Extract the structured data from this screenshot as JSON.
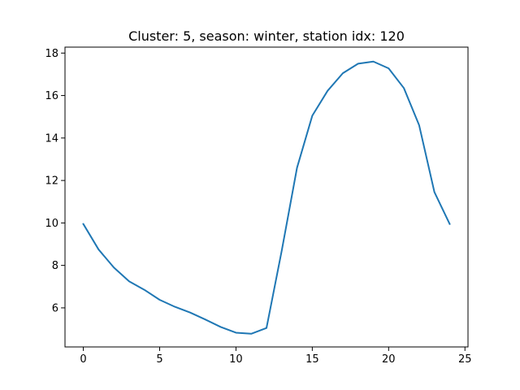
{
  "chart_data": {
    "type": "line",
    "title": "Cluster: 5, season: winter, station idx: 120",
    "xlabel": "",
    "ylabel": "",
    "xlim": [
      -1.2,
      25.2
    ],
    "ylim": [
      4.16,
      18.28
    ],
    "xticks": [
      0,
      5,
      10,
      15,
      20,
      25
    ],
    "yticks": [
      6,
      8,
      10,
      12,
      14,
      16,
      18
    ],
    "grid": false,
    "color": "#1f77b4",
    "series": [
      {
        "x": [
          0,
          1,
          2,
          3,
          4,
          5,
          6,
          7,
          8,
          9,
          10,
          11,
          12,
          13,
          14,
          15,
          16,
          17,
          18,
          19,
          20,
          21,
          22,
          23,
          24
        ],
        "values": [
          9.95,
          8.75,
          7.9,
          7.25,
          6.85,
          6.38,
          6.05,
          5.78,
          5.45,
          5.1,
          4.83,
          4.78,
          5.05,
          8.7,
          12.6,
          15.05,
          16.22,
          17.05,
          17.5,
          17.6,
          17.28,
          16.35,
          14.6,
          11.45,
          9.95
        ]
      }
    ]
  }
}
